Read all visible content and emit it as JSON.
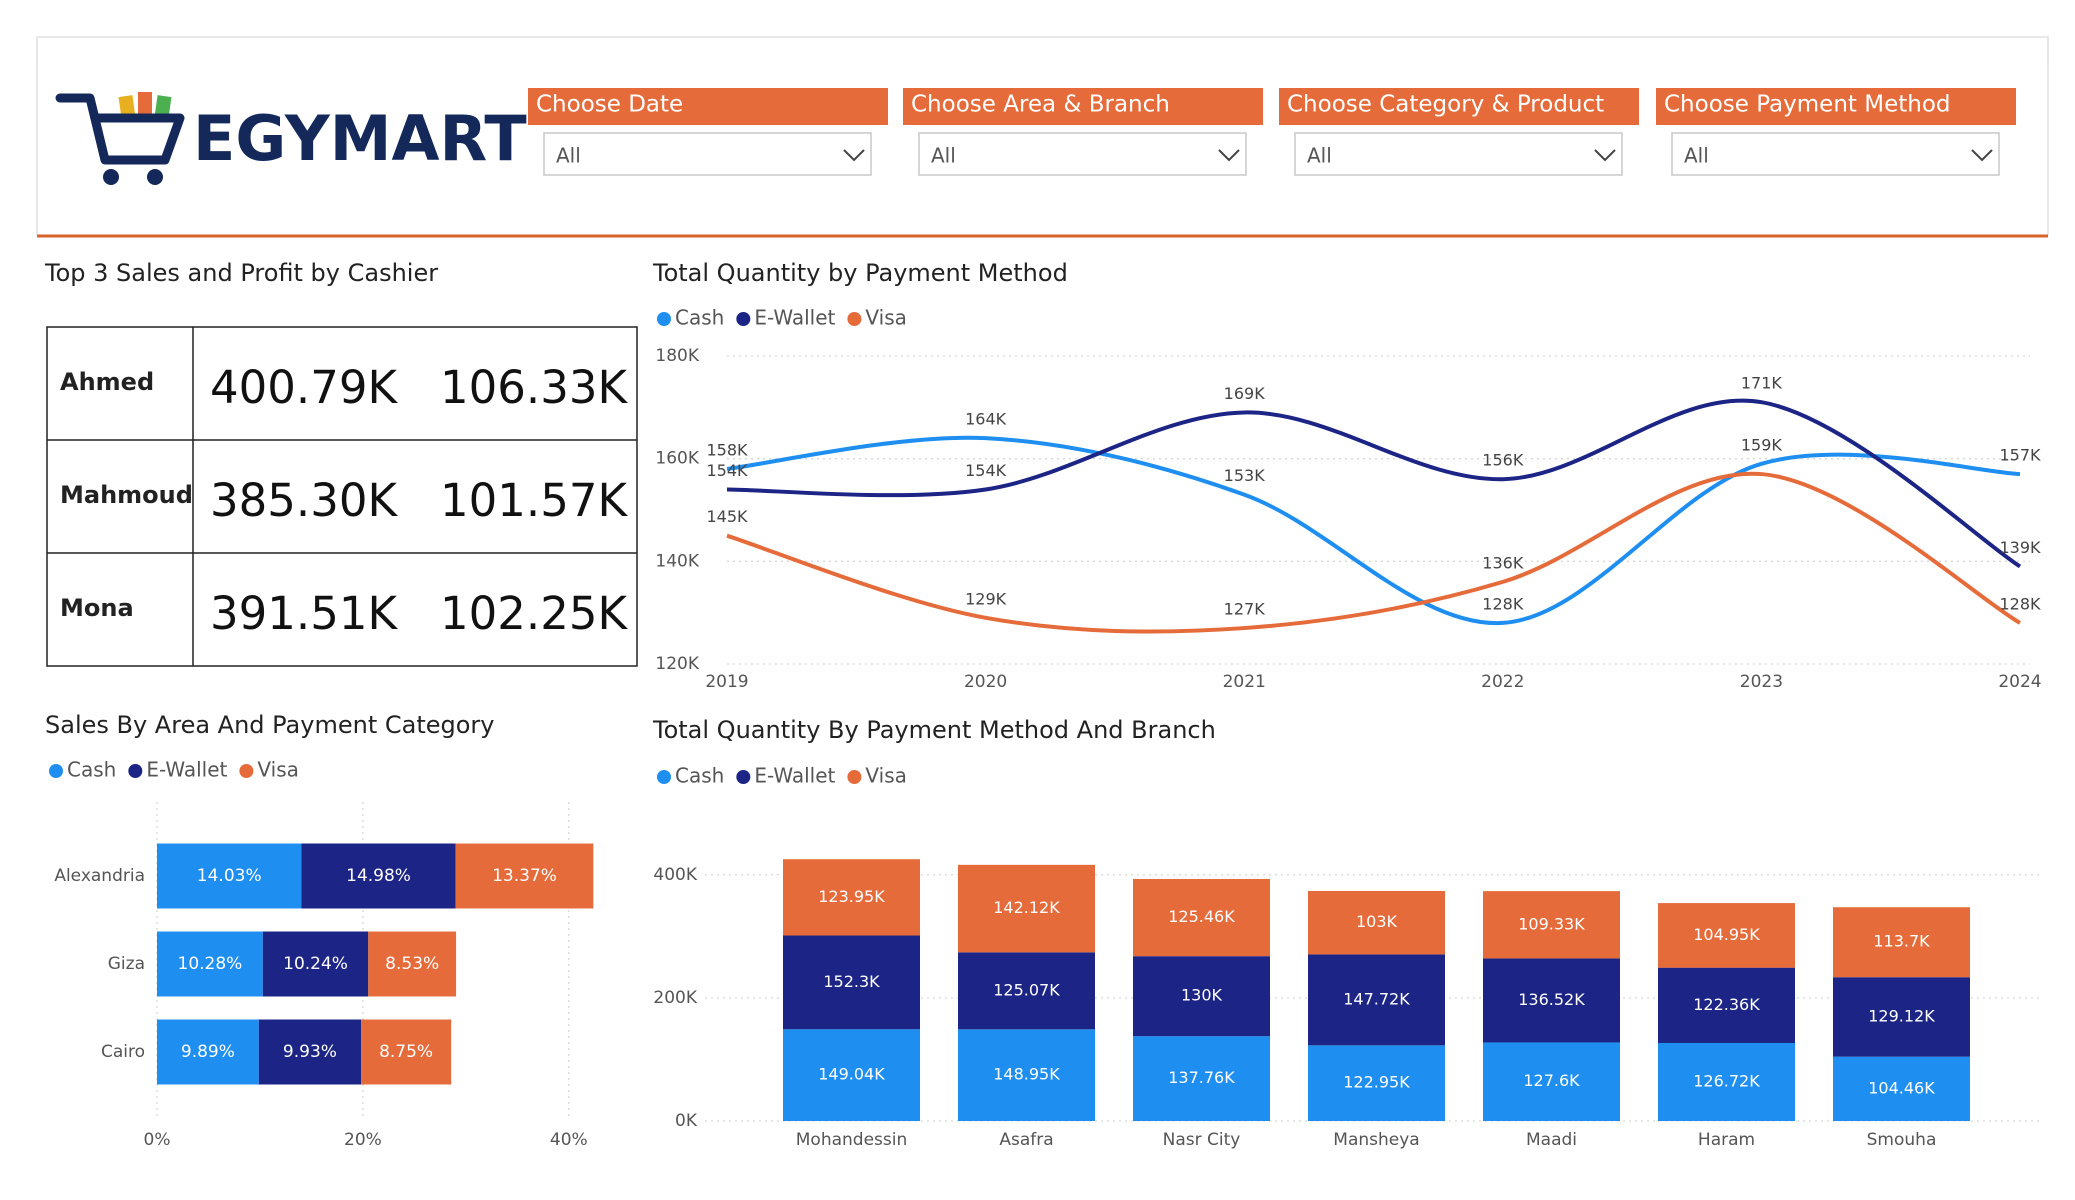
{
  "header": {
    "brand": "EGYMART"
  },
  "filters": [
    {
      "label": "Choose Date",
      "value": "All"
    },
    {
      "label": "Choose Area & Branch",
      "value": "All"
    },
    {
      "label": "Choose Category & Product",
      "value": "All"
    },
    {
      "label": "Choose Payment Method",
      "value": "All"
    }
  ],
  "cashier_table": {
    "title": "Top 3 Sales and Profit by Cashier",
    "rows": [
      [
        "Ahmed",
        "400.79K",
        "106.33K"
      ],
      [
        "Mahmoud",
        "385.30K",
        "101.57K"
      ],
      [
        "Mona",
        "391.51K",
        "102.25K"
      ]
    ]
  },
  "chart_data": [
    {
      "type": "line",
      "title": "Total Quantity by Payment Method",
      "categories": [
        "2019",
        "2020",
        "2021",
        "2022",
        "2023",
        "2024"
      ],
      "series": [
        {
          "name": "Cash",
          "color": "#1e8ff0",
          "values": [
            158000,
            164000,
            153000,
            128000,
            159000,
            157000
          ],
          "value_labels": [
            "158K",
            "164K",
            "153K",
            "128K",
            "159K",
            "157K"
          ]
        },
        {
          "name": "E-Wallet",
          "color": "#1c2585",
          "values": [
            154000,
            154000,
            169000,
            156000,
            171000,
            139000
          ],
          "value_labels": [
            "154K",
            "154K",
            "169K",
            "156K",
            "171K",
            "139K"
          ]
        },
        {
          "name": "Visa",
          "color": "#e56b3a",
          "values": [
            145000,
            129000,
            127000,
            136000,
            157000,
            128000
          ],
          "value_labels": [
            "145K",
            "129K",
            "127K",
            "136K",
            null,
            "128K"
          ]
        }
      ],
      "ylim": [
        120000,
        180000
      ],
      "yticks": [
        {
          "value": 120000,
          "label": "120K"
        },
        {
          "value": 140000,
          "label": "140K"
        },
        {
          "value": 160000,
          "label": "160K"
        },
        {
          "value": 180000,
          "label": "180K"
        }
      ],
      "grid": true
    },
    {
      "type": "bar",
      "orientation": "horizontal",
      "stacked": true,
      "title": "Sales By Area And Payment Category",
      "categories": [
        "Alexandria",
        "Giza",
        "Cairo"
      ],
      "series": [
        {
          "name": "Cash",
          "color": "#1e8ff0",
          "values": [
            14.03,
            10.28,
            9.89
          ],
          "value_labels": [
            "14.03%",
            "10.28%",
            "9.89%"
          ]
        },
        {
          "name": "E-Wallet",
          "color": "#1c2585",
          "values": [
            14.98,
            10.24,
            9.93
          ],
          "value_labels": [
            "14.98%",
            "10.24%",
            "9.93%"
          ]
        },
        {
          "name": "Visa",
          "color": "#e56b3a",
          "values": [
            13.37,
            8.53,
            8.75
          ],
          "value_labels": [
            "13.37%",
            "8.53%",
            "8.75%"
          ]
        }
      ],
      "xlim": [
        0,
        44
      ],
      "xticks": [
        {
          "value": 0,
          "label": "0%"
        },
        {
          "value": 20,
          "label": "20%"
        },
        {
          "value": 40,
          "label": "40%"
        }
      ],
      "grid": true
    },
    {
      "type": "bar",
      "orientation": "vertical",
      "stacked": true,
      "title": "Total Quantity By Payment Method And Branch",
      "categories": [
        "Mohandessin",
        "Asafra",
        "Nasr City",
        "Mansheya",
        "Maadi",
        "Haram",
        "Smouha"
      ],
      "series": [
        {
          "name": "Cash",
          "color": "#1e8ff0",
          "values": [
            149040,
            148950,
            137760,
            122950,
            127600,
            126720,
            104460
          ],
          "value_labels": [
            "149.04K",
            "148.95K",
            "137.76K",
            "122.95K",
            "127.6K",
            "126.72K",
            "104.46K"
          ]
        },
        {
          "name": "E-Wallet",
          "color": "#1c2585",
          "values": [
            152300,
            125070,
            130000,
            147720,
            136520,
            122360,
            129120
          ],
          "value_labels": [
            "152.3K",
            "125.07K",
            "130K",
            "147.72K",
            "136.52K",
            "122.36K",
            "129.12K"
          ]
        },
        {
          "name": "Visa",
          "color": "#e56b3a",
          "values": [
            123950,
            142120,
            125460,
            103000,
            109330,
            104950,
            113700
          ],
          "value_labels": [
            "123.95K",
            "142.12K",
            "125.46K",
            "103K",
            "109.33K",
            "104.95K",
            "113.7K"
          ]
        }
      ],
      "ylim": [
        0,
        450000
      ],
      "yticks": [
        {
          "value": 0,
          "label": "0K"
        },
        {
          "value": 200000,
          "label": "200K"
        },
        {
          "value": 400000,
          "label": "400K"
        }
      ],
      "grid": true
    }
  ]
}
